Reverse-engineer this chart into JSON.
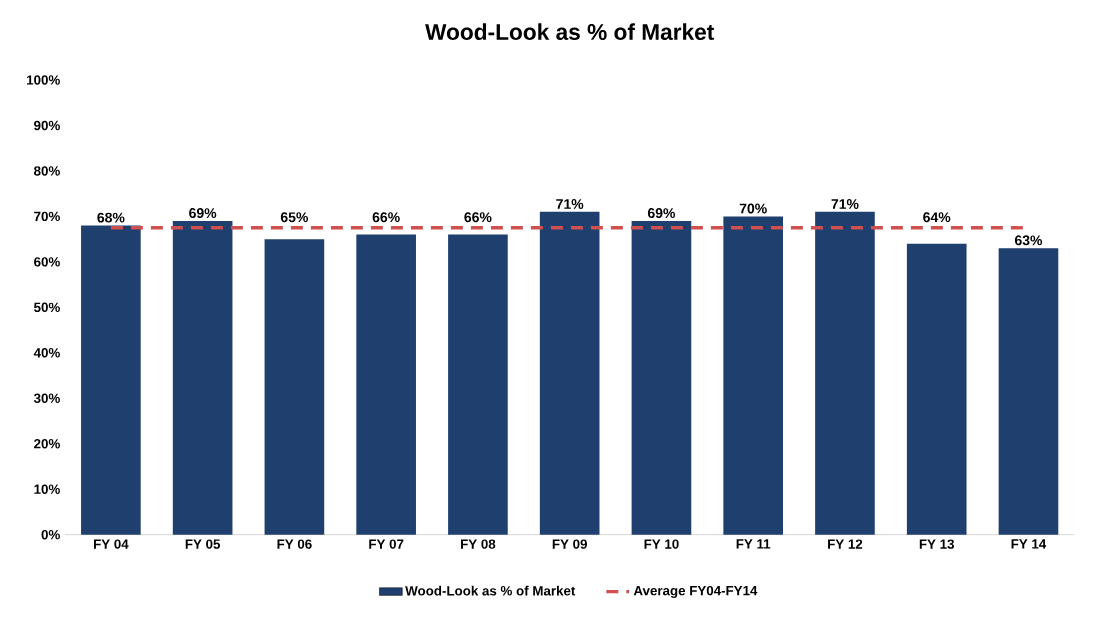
{
  "chart_data": {
    "type": "bar",
    "title": "Wood-Look as % of Market",
    "categories": [
      "FY 04",
      "FY 05",
      "FY 06",
      "FY 07",
      "FY 08",
      "FY 09",
      "FY 10",
      "FY 11",
      "FY 12",
      "FY 13",
      "FY 14"
    ],
    "series": [
      {
        "name": "Wood-Look as % of Market",
        "color": "#1f3f6e",
        "values": [
          68,
          69,
          65,
          66,
          66,
          71,
          69,
          70,
          71,
          64,
          63
        ],
        "value_labels": [
          "68%",
          "69%",
          "65%",
          "66%",
          "66%",
          "71%",
          "69%",
          "70%",
          "71%",
          "64%",
          "63%"
        ]
      },
      {
        "name": "Average FY04-FY14",
        "type": "line",
        "line_style": "dashed",
        "color": "#d05050",
        "values": [
          67.5,
          67.5,
          67.5,
          67.5,
          67.5,
          67.5,
          67.5,
          67.5,
          67.5,
          67.5,
          67.5
        ]
      }
    ],
    "ylim": [
      0,
      100
    ],
    "yticks": [
      {
        "value": 0,
        "label": "0%"
      },
      {
        "value": 10,
        "label": "10%"
      },
      {
        "value": 20,
        "label": "20%"
      },
      {
        "value": 30,
        "label": "30%"
      },
      {
        "value": 40,
        "label": "40%"
      },
      {
        "value": 50,
        "label": "50%"
      },
      {
        "value": 60,
        "label": "60%"
      },
      {
        "value": 70,
        "label": "70%"
      },
      {
        "value": 80,
        "label": "80%"
      },
      {
        "value": 90,
        "label": "90%"
      },
      {
        "value": 100,
        "label": "100%"
      }
    ],
    "legend": "bottom"
  }
}
